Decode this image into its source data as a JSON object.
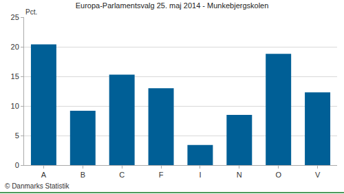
{
  "chart_data": {
    "type": "bar",
    "title": "Europa-Parlamentsvalg 25. maj 2014 - Munkebjergskolen",
    "ylabel": "Pct.",
    "categories": [
      "A",
      "B",
      "C",
      "F",
      "I",
      "N",
      "O",
      "V"
    ],
    "values": [
      20.4,
      9.2,
      15.3,
      13.0,
      3.4,
      8.5,
      18.8,
      12.3
    ],
    "color": "#005f96",
    "ylim": [
      0,
      25
    ],
    "yticks": [
      0,
      5,
      10,
      15,
      20,
      25
    ],
    "grid": true,
    "annotations": [
      {
        "text": "© Danmarks Statistik"
      }
    ]
  }
}
